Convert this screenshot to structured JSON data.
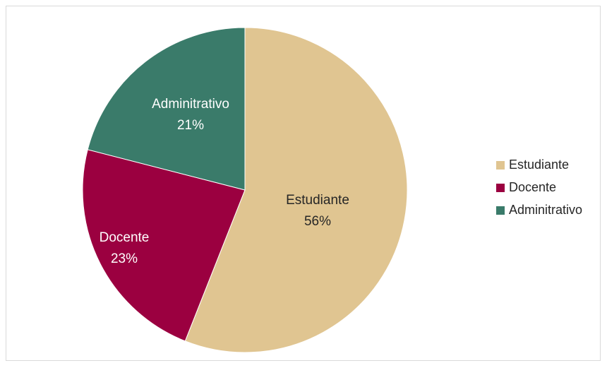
{
  "chart_data": {
    "type": "pie",
    "title": "",
    "start_angle_deg": 0,
    "direction": "clockwise",
    "slices": [
      {
        "name": "Estudiante",
        "value": 56,
        "label": "56%",
        "color": "#e0c591",
        "label_color": "#262626"
      },
      {
        "name": "Docente",
        "value": 23,
        "label": "23%",
        "color": "#9b0040",
        "label_color": "#ffffff"
      },
      {
        "name": "Adminitrativo",
        "value": 21,
        "label": "21%",
        "color": "#3a7b6a",
        "label_color": "#ffffff"
      }
    ],
    "legend": {
      "placement": "right",
      "items": [
        "Estudiante",
        "Docente",
        "Adminitrativo"
      ]
    }
  }
}
